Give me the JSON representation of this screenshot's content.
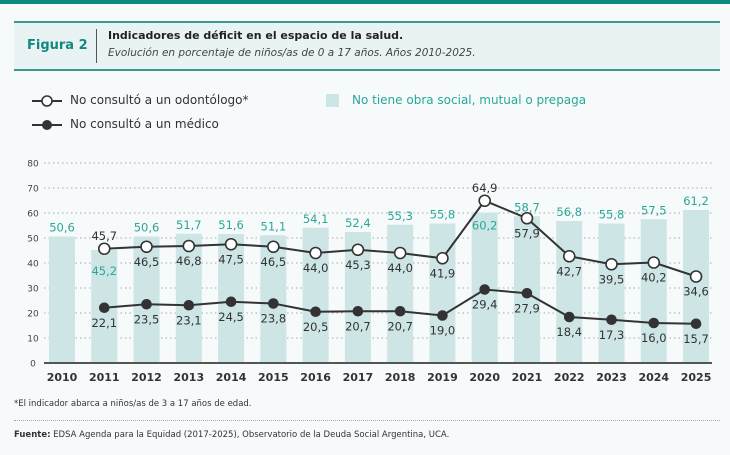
{
  "header": {
    "figure_label": "Figura 2",
    "title": "Indicadores de déficit en el espacio de la salud.",
    "subtitle": "Evolución en porcentaje de niños/as de 0 a 17 años. Años 2010-2025."
  },
  "colors": {
    "accent": "#0f8a80",
    "bar": "#cde5e4",
    "bar_label": "#2aa79b",
    "line": "#333333"
  },
  "chart_data": {
    "type": "bar+line",
    "categories": [
      "2010",
      "2011",
      "2012",
      "2013",
      "2014",
      "2015",
      "2016",
      "2017",
      "2018",
      "2019",
      "2020",
      "2021",
      "2022",
      "2023",
      "2024",
      "2025"
    ],
    "ylim": [
      0,
      80
    ],
    "yticks": [
      0,
      10,
      20,
      30,
      40,
      50,
      60,
      70,
      80
    ],
    "grid": true,
    "legend_position": "top-left",
    "series": [
      {
        "name": "No tiene obra social, mutual o prepaga",
        "type": "bar",
        "values": [
          50.6,
          45.2,
          50.6,
          51.7,
          51.6,
          51.1,
          54.1,
          52.4,
          55.3,
          55.8,
          60.2,
          58.7,
          56.8,
          55.8,
          57.5,
          61.2
        ]
      },
      {
        "name": "No consultó a un odontólogo*",
        "type": "line",
        "marker": "open-circle",
        "values": [
          null,
          45.7,
          46.5,
          46.8,
          47.5,
          46.5,
          44.0,
          45.3,
          44.0,
          41.9,
          64.9,
          57.9,
          42.7,
          39.5,
          40.2,
          34.6
        ]
      },
      {
        "name": "No consultó a un médico",
        "type": "line",
        "marker": "filled-circle",
        "values": [
          null,
          22.1,
          23.5,
          23.1,
          24.5,
          23.8,
          20.5,
          20.7,
          20.7,
          19.0,
          29.4,
          27.9,
          18.4,
          17.3,
          16.0,
          15.7
        ]
      }
    ]
  },
  "footnote": "*El indicador abarca a niños/as de 3 a 17 años de edad.",
  "source": {
    "label": "Fuente:",
    "text": " EDSA Agenda para la Equidad (2017-2025), Observatorio de la Deuda Social Argentina, UCA."
  }
}
